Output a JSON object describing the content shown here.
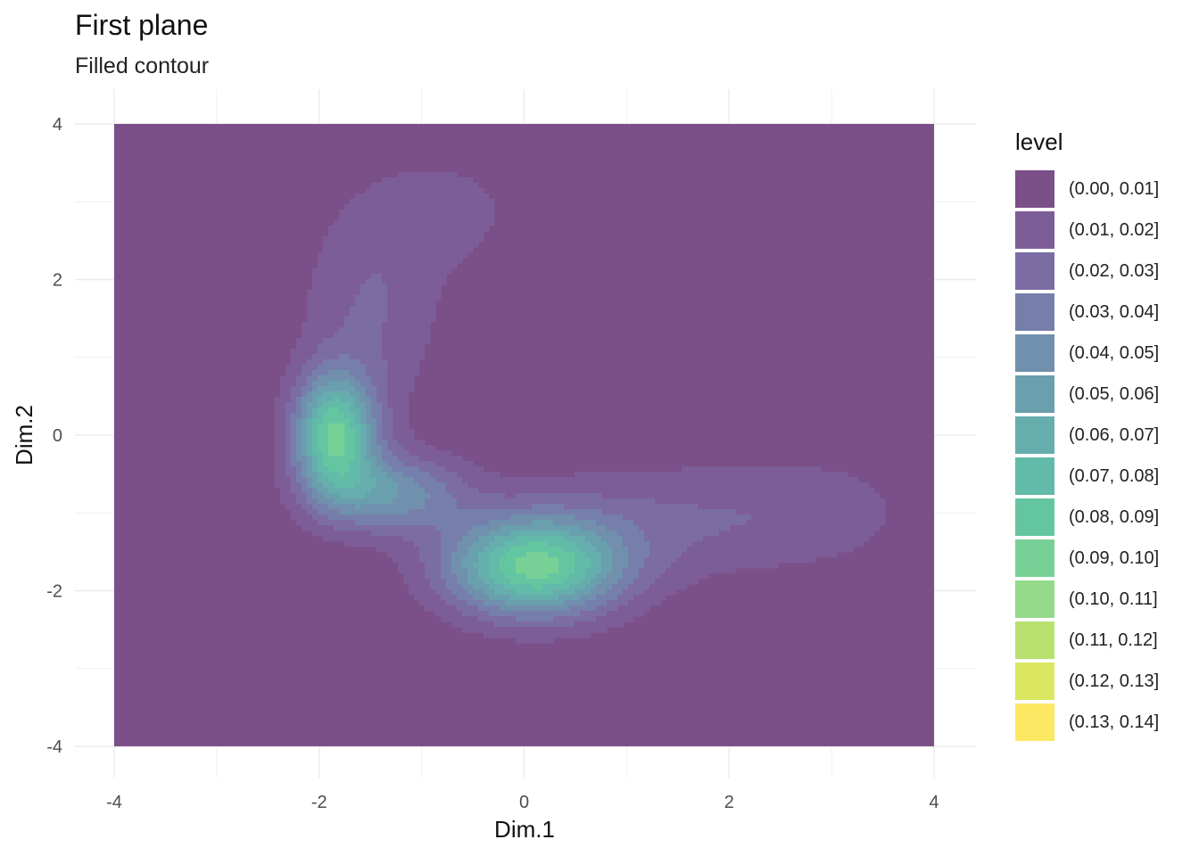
{
  "title": "First plane",
  "subtitle": "Filled contour",
  "chart_data": {
    "type": "filled-contour",
    "xlabel": "Dim.1",
    "ylabel": "Dim.2",
    "xlim": [
      -4,
      4
    ],
    "ylim": [
      -4,
      4
    ],
    "xticks": [
      -4,
      -2,
      0,
      2,
      4
    ],
    "yticks": [
      4,
      2,
      0,
      -2,
      -4
    ],
    "grid": true,
    "legend_title": "level",
    "legend_position": "right",
    "levels": [
      {
        "label": "(0.00, 0.01]",
        "color": "#7b4f87"
      },
      {
        "label": "(0.01, 0.02]",
        "color": "#7d5d98"
      },
      {
        "label": "(0.02, 0.03]",
        "color": "#7b6da3"
      },
      {
        "label": "(0.03, 0.04]",
        "color": "#767fab"
      },
      {
        "label": "(0.04, 0.05]",
        "color": "#7090ad"
      },
      {
        "label": "(0.05, 0.06]",
        "color": "#6a9fae"
      },
      {
        "label": "(0.06, 0.07]",
        "color": "#66aeae"
      },
      {
        "label": "(0.07, 0.08]",
        "color": "#62baa8"
      },
      {
        "label": "(0.08, 0.09]",
        "color": "#64c6a0"
      },
      {
        "label": "(0.09, 0.10]",
        "color": "#77d196"
      },
      {
        "label": "(0.10, 0.11]",
        "color": "#95da8a"
      },
      {
        "label": "(0.11, 0.12]",
        "color": "#b8e16f"
      },
      {
        "label": "(0.12, 0.13]",
        "color": "#dbe760"
      },
      {
        "label": "(0.13, 0.14]",
        "color": "#fce862"
      }
    ],
    "density_modes": [
      {
        "x": -1.85,
        "y": 0.0,
        "sx": 0.28,
        "sy": 0.55,
        "weight": 0.088
      },
      {
        "x": -1.3,
        "y": -0.75,
        "sx": 0.5,
        "sy": 0.35,
        "weight": 0.045
      },
      {
        "x": 0.1,
        "y": -1.7,
        "sx": 0.6,
        "sy": 0.45,
        "weight": 0.09
      },
      {
        "x": -1.5,
        "y": 1.6,
        "sx": 0.5,
        "sy": 1.0,
        "weight": 0.02
      },
      {
        "x": -0.7,
        "y": 2.9,
        "sx": 0.6,
        "sy": 0.6,
        "weight": 0.012
      },
      {
        "x": 1.5,
        "y": -1.1,
        "sx": 1.2,
        "sy": 0.55,
        "weight": 0.02
      },
      {
        "x": 3.0,
        "y": -0.9,
        "sx": 0.6,
        "sy": 0.5,
        "weight": 0.008
      }
    ]
  }
}
